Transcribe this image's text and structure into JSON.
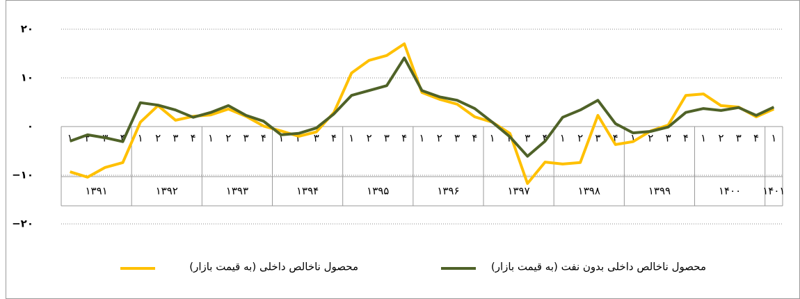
{
  "chart_data": {
    "type": "line",
    "category_groups": [
      {
        "label": "۱۳۹۱",
        "quarters": [
          "۱",
          "۲",
          "۳",
          "۴"
        ]
      },
      {
        "label": "۱۳۹۲",
        "quarters": [
          "۱",
          "۲",
          "۳",
          "۴"
        ]
      },
      {
        "label": "۱۳۹۳",
        "quarters": [
          "۱",
          "۲",
          "۳",
          "۴"
        ]
      },
      {
        "label": "۱۳۹۴",
        "quarters": [
          "۱",
          "۲",
          "۳",
          "۴"
        ]
      },
      {
        "label": "۱۳۹۵",
        "quarters": [
          "۱",
          "۲",
          "۳",
          "۴"
        ]
      },
      {
        "label": "۱۳۹۶",
        "quarters": [
          "۱",
          "۲",
          "۳",
          "۴"
        ]
      },
      {
        "label": "۱۳۹۷",
        "quarters": [
          "۱",
          "۲",
          "۳",
          "۴"
        ]
      },
      {
        "label": "۱۳۹۸",
        "quarters": [
          "۱",
          "۲",
          "۳",
          "۴"
        ]
      },
      {
        "label": "۱۳۹۹",
        "quarters": [
          "۱",
          "۲",
          "۳",
          "۴"
        ]
      },
      {
        "label": "۱۴۰۰",
        "quarters": [
          "۱",
          "۲",
          "۳",
          "۴"
        ]
      },
      {
        "label": "۱۴۰۱",
        "quarters": [
          "۱"
        ]
      }
    ],
    "series": [
      {
        "name": "محصول ناخالص داخلی بدون نفت (به قیمت بازار)",
        "color": "#4f6228",
        "values": [
          -3.0,
          -1.7,
          -2.3,
          -3.1,
          4.9,
          4.4,
          3.4,
          1.9,
          2.9,
          4.3,
          2.3,
          1.1,
          -1.7,
          -1.4,
          -0.3,
          2.6,
          6.4,
          7.4,
          8.4,
          14.1,
          7.4,
          6.1,
          5.4,
          3.7,
          0.9,
          -2.1,
          -6.1,
          -3.0,
          1.9,
          3.4,
          5.4,
          0.6,
          -1.3,
          -1.0,
          -0.1,
          2.9,
          3.7,
          3.3,
          3.9,
          2.3,
          4.0
        ]
      },
      {
        "name": "محصول ناخالص داخلی (به قیمت بازار)",
        "color": "#ffc000",
        "values": [
          -9.3,
          -10.4,
          -8.4,
          -7.4,
          0.9,
          4.3,
          1.3,
          2.1,
          2.4,
          3.6,
          2.1,
          0.1,
          -0.9,
          -2.0,
          -1.1,
          2.9,
          11.0,
          13.6,
          14.6,
          17.0,
          7.0,
          5.6,
          4.6,
          2.0,
          0.9,
          -1.4,
          -11.7,
          -7.3,
          -7.7,
          -7.4,
          2.3,
          -3.7,
          -3.1,
          -0.9,
          0.3,
          6.4,
          6.7,
          4.3,
          4.0,
          2.0,
          3.6
        ]
      }
    ],
    "ylim": [
      -22,
      22
    ],
    "yticks": [
      {
        "value": 20,
        "label": "۲۰"
      },
      {
        "value": 10,
        "label": "۱۰"
      },
      {
        "value": 0,
        "label": "۰"
      },
      {
        "value": -10,
        "label": "−۱۰"
      },
      {
        "value": -20,
        "label": "−۲۰"
      }
    ],
    "grid": true
  }
}
